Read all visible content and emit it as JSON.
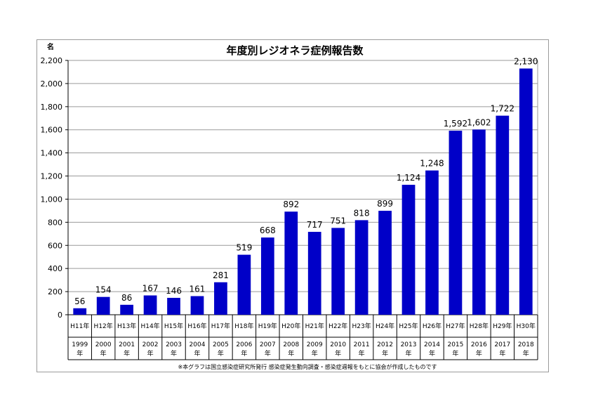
{
  "chart_data": {
    "type": "bar",
    "title": "年度別レジオネラ症例報告数",
    "ylabel": "名",
    "ylim": [
      0,
      2200
    ],
    "yticks": [
      0,
      200,
      400,
      600,
      800,
      1000,
      1200,
      1400,
      1600,
      1800,
      2000,
      2200
    ],
    "ytick_labels": [
      "0",
      "200",
      "400",
      "600",
      "800",
      "1,000",
      "1,200",
      "1,400",
      "1,600",
      "1,800",
      "2,000",
      "2,200"
    ],
    "grid": true,
    "bar_color": "#0000c8",
    "highlight_label_color": "#ff0000",
    "categories": [
      "H11年",
      "H12年",
      "H13年",
      "H14年",
      "H15年",
      "H16年",
      "H17年",
      "H18年",
      "H19年",
      "H20年",
      "H21年",
      "H22年",
      "H23年",
      "H24年",
      "H25年",
      "H26年",
      "H27年",
      "H28年",
      "H29年",
      "H30年"
    ],
    "years": [
      "1999",
      "2000",
      "2001",
      "2002",
      "2003",
      "2004",
      "2005",
      "2006",
      "2007",
      "2008",
      "2009",
      "2010",
      "2011",
      "2012",
      "2013",
      "2014",
      "2015",
      "2016",
      "2017",
      "2018"
    ],
    "year_suffix": "年",
    "values": [
      56,
      154,
      86,
      167,
      146,
      161,
      281,
      519,
      668,
      892,
      717,
      751,
      818,
      899,
      1124,
      1248,
      1592,
      1602,
      1722,
      2130
    ],
    "data_labels": [
      "56",
      "154",
      "86",
      "167",
      "146",
      "161",
      "281",
      "519",
      "668",
      "892",
      "717",
      "751",
      "818",
      "899",
      "1,124",
      "1,248",
      "1,592",
      "1,602",
      "1,722",
      "2,130"
    ],
    "highlight_index": 19,
    "note": "※本グラフは国立感染症研究所発行 感染症発生動向調査・感染症週報をもとに協会が作成したものです"
  }
}
